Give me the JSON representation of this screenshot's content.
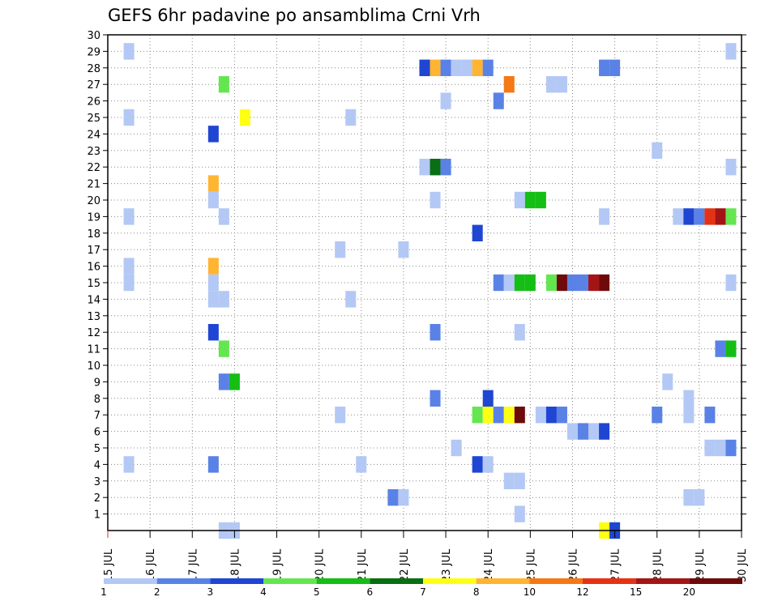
{
  "chart_data": {
    "type": "heatmap",
    "title": "GEFS 6hr padavine po ansamblima Crni Vrh",
    "xlabel": "",
    "ylabel": "",
    "x_ticks": [
      "15 JUL",
      "16 JUL",
      "17 JUL",
      "18 JUL",
      "19 JUL",
      "20 JUL",
      "21 JUL",
      "22 JUL",
      "23 JUL",
      "24 JUL",
      "25 JUL",
      "26 JUL",
      "27 JUL",
      "28 JUL",
      "29 JUL",
      "30 JUL"
    ],
    "xlim": [
      15,
      30
    ],
    "y_ticks": [
      1,
      2,
      3,
      4,
      5,
      6,
      7,
      8,
      9,
      10,
      11,
      12,
      13,
      14,
      15,
      16,
      17,
      18,
      19,
      20,
      21,
      22,
      23,
      24,
      25,
      26,
      27,
      28,
      29,
      30
    ],
    "ylim": [
      0,
      30
    ],
    "grid": true,
    "colorbar": {
      "levels": [
        "1",
        "2",
        "3",
        "4",
        "5",
        "6",
        "7",
        "8",
        "10",
        "12",
        "15",
        "20",
        ""
      ],
      "colors": [
        "#b4c8f5",
        "#5a82e6",
        "#1e46d2",
        "#64e650",
        "#14be14",
        "#0a6e14",
        "#ffff14",
        "#ffb432",
        "#f57814",
        "#e63214",
        "#a51414",
        "#6e0a0a"
      ]
    },
    "cell_time_width_hours": 6,
    "cells": [
      {
        "t": 15.5,
        "y": 29,
        "c": 0
      },
      {
        "t": 15.5,
        "y": 25,
        "c": 0
      },
      {
        "t": 15.5,
        "y": 19,
        "c": 0
      },
      {
        "t": 15.5,
        "y": 16,
        "c": 0
      },
      {
        "t": 15.5,
        "y": 15,
        "c": 0
      },
      {
        "t": 15.5,
        "y": 4,
        "c": 0
      },
      {
        "t": 17.5,
        "y": 24,
        "c": 2
      },
      {
        "t": 17.5,
        "y": 21,
        "c": 7
      },
      {
        "t": 17.5,
        "y": 20,
        "c": 0
      },
      {
        "t": 17.5,
        "y": 16,
        "c": 7
      },
      {
        "t": 17.5,
        "y": 15,
        "c": 0
      },
      {
        "t": 17.5,
        "y": 14,
        "c": 0
      },
      {
        "t": 17.5,
        "y": 12,
        "c": 2
      },
      {
        "t": 17.5,
        "y": 4,
        "c": 1
      },
      {
        "t": 17.75,
        "y": 27,
        "c": 3
      },
      {
        "t": 17.75,
        "y": 19,
        "c": 0
      },
      {
        "t": 17.75,
        "y": 14,
        "c": 0
      },
      {
        "t": 17.75,
        "y": 11,
        "c": 3
      },
      {
        "t": 17.75,
        "y": 9,
        "c": 1
      },
      {
        "t": 17.75,
        "y": 0,
        "c": 0
      },
      {
        "t": 18.0,
        "y": 9,
        "c": 4
      },
      {
        "t": 18.0,
        "y": 0,
        "c": 0
      },
      {
        "t": 18.25,
        "y": 25,
        "c": 6
      },
      {
        "t": 20.5,
        "y": 17,
        "c": 0
      },
      {
        "t": 20.5,
        "y": 7,
        "c": 0
      },
      {
        "t": 20.75,
        "y": 25,
        "c": 0
      },
      {
        "t": 20.75,
        "y": 14,
        "c": 0
      },
      {
        "t": 21.0,
        "y": 4,
        "c": 0
      },
      {
        "t": 21.75,
        "y": 2,
        "c": 1
      },
      {
        "t": 22.0,
        "y": 17,
        "c": 0
      },
      {
        "t": 22.0,
        "y": 2,
        "c": 0
      },
      {
        "t": 22.5,
        "y": 28,
        "c": 2
      },
      {
        "t": 22.5,
        "y": 22,
        "c": 0
      },
      {
        "t": 22.75,
        "y": 28,
        "c": 7
      },
      {
        "t": 22.75,
        "y": 22,
        "c": 5
      },
      {
        "t": 22.75,
        "y": 20,
        "c": 0
      },
      {
        "t": 22.75,
        "y": 12,
        "c": 1
      },
      {
        "t": 22.75,
        "y": 8,
        "c": 1
      },
      {
        "t": 23.0,
        "y": 28,
        "c": 1
      },
      {
        "t": 23.0,
        "y": 26,
        "c": 0
      },
      {
        "t": 23.0,
        "y": 22,
        "c": 1
      },
      {
        "t": 23.25,
        "y": 28,
        "c": 0
      },
      {
        "t": 23.25,
        "y": 5,
        "c": 0
      },
      {
        "t": 23.5,
        "y": 28,
        "c": 0
      },
      {
        "t": 23.75,
        "y": 28,
        "c": 7
      },
      {
        "t": 23.75,
        "y": 18,
        "c": 2
      },
      {
        "t": 23.75,
        "y": 7,
        "c": 3
      },
      {
        "t": 23.75,
        "y": 4,
        "c": 2
      },
      {
        "t": 24.0,
        "y": 28,
        "c": 1
      },
      {
        "t": 24.0,
        "y": 8,
        "c": 2
      },
      {
        "t": 24.0,
        "y": 7,
        "c": 6
      },
      {
        "t": 24.0,
        "y": 4,
        "c": 0
      },
      {
        "t": 24.25,
        "y": 26,
        "c": 1
      },
      {
        "t": 24.25,
        "y": 15,
        "c": 1
      },
      {
        "t": 24.25,
        "y": 7,
        "c": 1
      },
      {
        "t": 24.5,
        "y": 27,
        "c": 8
      },
      {
        "t": 24.5,
        "y": 15,
        "c": 0
      },
      {
        "t": 24.5,
        "y": 7,
        "c": 6
      },
      {
        "t": 24.5,
        "y": 3,
        "c": 0
      },
      {
        "t": 24.75,
        "y": 20,
        "c": 0
      },
      {
        "t": 24.75,
        "y": 15,
        "c": 4
      },
      {
        "t": 24.75,
        "y": 12,
        "c": 0
      },
      {
        "t": 24.75,
        "y": 7,
        "c": 11
      },
      {
        "t": 24.75,
        "y": 3,
        "c": 0
      },
      {
        "t": 24.75,
        "y": 1,
        "c": 0
      },
      {
        "t": 25.0,
        "y": 20,
        "c": 4
      },
      {
        "t": 25.0,
        "y": 15,
        "c": 4
      },
      {
        "t": 25.25,
        "y": 20,
        "c": 4
      },
      {
        "t": 25.25,
        "y": 7,
        "c": 0
      },
      {
        "t": 25.5,
        "y": 27,
        "c": 0
      },
      {
        "t": 25.5,
        "y": 15,
        "c": 3
      },
      {
        "t": 25.5,
        "y": 7,
        "c": 2
      },
      {
        "t": 25.75,
        "y": 27,
        "c": 0
      },
      {
        "t": 25.75,
        "y": 15,
        "c": 11
      },
      {
        "t": 25.75,
        "y": 7,
        "c": 1
      },
      {
        "t": 26.0,
        "y": 15,
        "c": 1
      },
      {
        "t": 26.0,
        "y": 6,
        "c": 0
      },
      {
        "t": 26.25,
        "y": 15,
        "c": 1
      },
      {
        "t": 26.25,
        "y": 6,
        "c": 1
      },
      {
        "t": 26.5,
        "y": 15,
        "c": 10
      },
      {
        "t": 26.5,
        "y": 6,
        "c": 0
      },
      {
        "t": 26.75,
        "y": 28,
        "c": 1
      },
      {
        "t": 26.75,
        "y": 19,
        "c": 0
      },
      {
        "t": 26.75,
        "y": 15,
        "c": 11
      },
      {
        "t": 26.75,
        "y": 6,
        "c": 2
      },
      {
        "t": 26.75,
        "y": 0,
        "c": 6
      },
      {
        "t": 27.0,
        "y": 28,
        "c": 1
      },
      {
        "t": 27.0,
        "y": 0,
        "c": 2
      },
      {
        "t": 28.0,
        "y": 23,
        "c": 0
      },
      {
        "t": 28.0,
        "y": 7,
        "c": 1
      },
      {
        "t": 28.25,
        "y": 9,
        "c": 0
      },
      {
        "t": 28.5,
        "y": 19,
        "c": 0
      },
      {
        "t": 28.75,
        "y": 19,
        "c": 2
      },
      {
        "t": 28.75,
        "y": 8,
        "c": 0
      },
      {
        "t": 28.75,
        "y": 7,
        "c": 0
      },
      {
        "t": 28.75,
        "y": 2,
        "c": 0
      },
      {
        "t": 29.0,
        "y": 19,
        "c": 1
      },
      {
        "t": 29.0,
        "y": 2,
        "c": 0
      },
      {
        "t": 29.25,
        "y": 19,
        "c": 9
      },
      {
        "t": 29.25,
        "y": 7,
        "c": 1
      },
      {
        "t": 29.25,
        "y": 5,
        "c": 0
      },
      {
        "t": 29.5,
        "y": 19,
        "c": 10
      },
      {
        "t": 29.5,
        "y": 11,
        "c": 1
      },
      {
        "t": 29.5,
        "y": 5,
        "c": 0
      },
      {
        "t": 29.75,
        "y": 29,
        "c": 0
      },
      {
        "t": 29.75,
        "y": 22,
        "c": 0
      },
      {
        "t": 29.75,
        "y": 19,
        "c": 3
      },
      {
        "t": 29.75,
        "y": 15,
        "c": 0
      },
      {
        "t": 29.75,
        "y": 11,
        "c": 4
      },
      {
        "t": 29.75,
        "y": 5,
        "c": 1
      }
    ]
  }
}
